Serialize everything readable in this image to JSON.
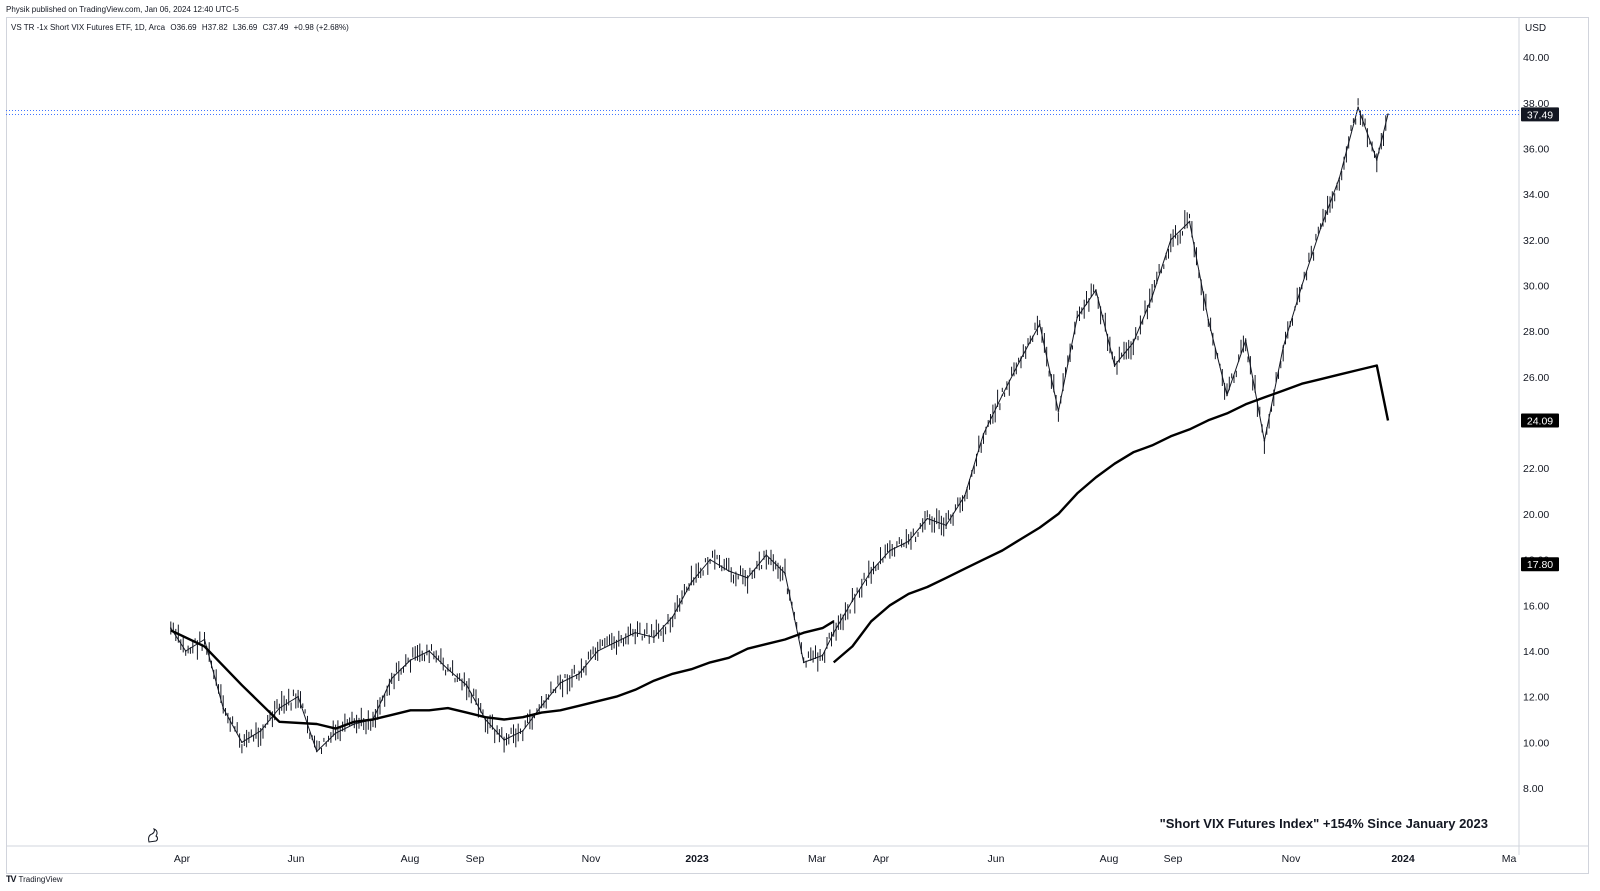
{
  "header": {
    "published_by": "Physik published on TradingView.com, Jan 06, 2024 12:40 UTC-5"
  },
  "symbol": {
    "name": "VS TR -1x Short VIX Futures ETF, 1D, Arca",
    "open": "O36.69",
    "high": "H37.82",
    "low": "L36.69",
    "close": "C37.49",
    "change": "+0.98 (+2.68%)"
  },
  "annotation": "\"Short VIX Futures Index\" +154% Since January 2023",
  "footer": {
    "brand": "TradingView",
    "logo_icon": "tradingview-logo-icon"
  },
  "price_scale": {
    "currency": "USD",
    "ticks": [
      "8.00",
      "10.00",
      "12.00",
      "14.00",
      "16.00",
      "18.00",
      "20.00",
      "22.00",
      "24.00",
      "26.00",
      "28.00",
      "30.00",
      "32.00",
      "34.00",
      "36.00",
      "38.00",
      "40.00"
    ]
  },
  "price_labels": {
    "last": "37.49",
    "ma_fast": "24.09",
    "ma_slow": "17.80",
    "colors": {
      "last_bg": "#131722",
      "ma_bg": "#000000",
      "text": "#ffffff",
      "dotted_line": "#2962ff"
    }
  },
  "time_axis": {
    "labels": [
      {
        "text": "Apr",
        "bold": false
      },
      {
        "text": "Jun",
        "bold": false
      },
      {
        "text": "Aug",
        "bold": false
      },
      {
        "text": "Sep",
        "bold": false
      },
      {
        "text": "Nov",
        "bold": false
      },
      {
        "text": "2023",
        "bold": true
      },
      {
        "text": "Mar",
        "bold": false
      },
      {
        "text": "Apr",
        "bold": false
      },
      {
        "text": "Jun",
        "bold": false
      },
      {
        "text": "Aug",
        "bold": false
      },
      {
        "text": "Sep",
        "bold": false
      },
      {
        "text": "Nov",
        "bold": false
      },
      {
        "text": "2024",
        "bold": true
      },
      {
        "text": "Ma",
        "bold": false
      }
    ]
  },
  "chart_data": {
    "type": "line",
    "title": "",
    "ylabel": "USD",
    "ylim": [
      7.0,
      41.2
    ],
    "grid": false,
    "series": [
      {
        "name": "VS TR -1x Short VIX Futures ETF",
        "style": "ohlc-bars",
        "x": [
          "2022-03-26",
          "2022-04-03",
          "2022-04-13",
          "2022-04-23",
          "2022-05-03",
          "2022-05-13",
          "2022-05-23",
          "2022-06-02",
          "2022-06-12",
          "2022-06-22",
          "2022-07-02",
          "2022-07-12",
          "2022-07-22",
          "2022-08-01",
          "2022-08-11",
          "2022-08-21",
          "2022-08-31",
          "2022-09-10",
          "2022-09-20",
          "2022-09-30",
          "2022-10-10",
          "2022-10-20",
          "2022-10-30",
          "2022-11-09",
          "2022-11-19",
          "2022-11-29",
          "2022-12-09",
          "2022-12-19",
          "2022-12-29",
          "2023-01-08",
          "2023-01-18",
          "2023-01-28",
          "2023-02-07",
          "2023-02-17",
          "2023-02-27",
          "2023-03-09",
          "2023-03-15",
          "2023-03-25",
          "2023-04-04",
          "2023-04-14",
          "2023-04-24",
          "2023-05-04",
          "2023-05-14",
          "2023-05-24",
          "2023-06-03",
          "2023-06-13",
          "2023-06-23",
          "2023-07-03",
          "2023-07-13",
          "2023-07-23",
          "2023-08-02",
          "2023-08-12",
          "2023-08-22",
          "2023-09-01",
          "2023-09-11",
          "2023-09-21",
          "2023-10-01",
          "2023-10-11",
          "2023-10-21",
          "2023-10-31",
          "2023-11-10",
          "2023-11-20",
          "2023-11-30",
          "2023-12-10",
          "2023-12-20",
          "2023-12-30",
          "2024-01-05"
        ],
        "values": [
          15.0,
          14.0,
          14.5,
          11.5,
          10.0,
          10.5,
          11.5,
          12.0,
          9.6,
          10.4,
          10.8,
          11.0,
          12.8,
          13.6,
          14.0,
          13.2,
          12.5,
          11.0,
          10.1,
          10.5,
          11.6,
          12.6,
          13.0,
          14.0,
          14.4,
          14.8,
          14.6,
          15.5,
          17.0,
          18.0,
          17.5,
          17.2,
          18.2,
          17.4,
          13.5,
          13.8,
          14.8,
          16.2,
          17.5,
          18.4,
          18.8,
          19.8,
          19.5,
          20.8,
          23.5,
          25.2,
          26.8,
          28.3,
          24.5,
          28.6,
          29.8,
          26.5,
          27.5,
          29.5,
          32.0,
          32.8,
          28.5,
          25.2,
          27.6,
          23.2,
          27.3,
          30.0,
          32.5,
          34.7,
          37.8,
          35.5,
          37.5
        ]
      },
      {
        "name": "MA fast",
        "x": [
          "2022-03-26",
          "2022-04-13",
          "2022-05-03",
          "2022-05-23",
          "2022-06-12",
          "2022-06-22",
          "2022-07-02",
          "2022-07-12",
          "2022-07-22",
          "2022-08-01",
          "2022-08-11",
          "2022-08-21",
          "2022-08-31",
          "2022-09-10",
          "2022-09-20",
          "2022-09-30",
          "2022-10-10",
          "2022-10-20",
          "2022-10-30",
          "2022-11-09",
          "2022-11-19",
          "2022-11-29",
          "2022-12-09",
          "2022-12-19",
          "2022-12-29",
          "2023-01-08",
          "2023-01-18",
          "2023-01-28",
          "2023-02-07",
          "2023-02-17",
          "2023-02-27",
          "2023-03-09",
          "2023-03-15"
        ],
        "values": [
          14.9,
          14.2,
          12.5,
          10.9,
          10.8,
          10.6,
          10.9,
          11.0,
          11.2,
          11.4,
          11.4,
          11.5,
          11.3,
          11.1,
          11.0,
          11.1,
          11.3,
          11.4,
          11.6,
          11.8,
          12.0,
          12.3,
          12.7,
          13.0,
          13.2,
          13.5,
          13.7,
          14.1,
          14.3,
          14.5,
          14.8,
          15.0,
          15.3
        ]
      },
      {
        "name": "MA fast (cont.)",
        "x": [
          "2023-03-15",
          "2023-03-25",
          "2023-04-04",
          "2023-04-14",
          "2023-04-24",
          "2023-05-04",
          "2023-05-14",
          "2023-05-24",
          "2023-06-03",
          "2023-06-13",
          "2023-06-23",
          "2023-07-03",
          "2023-07-13",
          "2023-07-23",
          "2023-08-02",
          "2023-08-12",
          "2023-08-22",
          "2023-09-01",
          "2023-09-11",
          "2023-09-21",
          "2023-10-01",
          "2023-10-11",
          "2023-10-21",
          "2023-10-31",
          "2023-11-10",
          "2023-11-20",
          "2023-11-30",
          "2023-12-10",
          "2023-12-20",
          "2023-12-30",
          "2024-01-05"
        ],
        "values": [
          13.5,
          14.2,
          15.3,
          16.0,
          16.5,
          16.8,
          17.2,
          17.6,
          18.0,
          18.4,
          18.9,
          19.4,
          20.0,
          20.9,
          21.6,
          22.2,
          22.7,
          23.0,
          23.4,
          23.7,
          24.1,
          24.4,
          24.8,
          25.1,
          25.4,
          25.7,
          25.9,
          26.1,
          26.3,
          26.5,
          24.09
        ]
      }
    ]
  }
}
